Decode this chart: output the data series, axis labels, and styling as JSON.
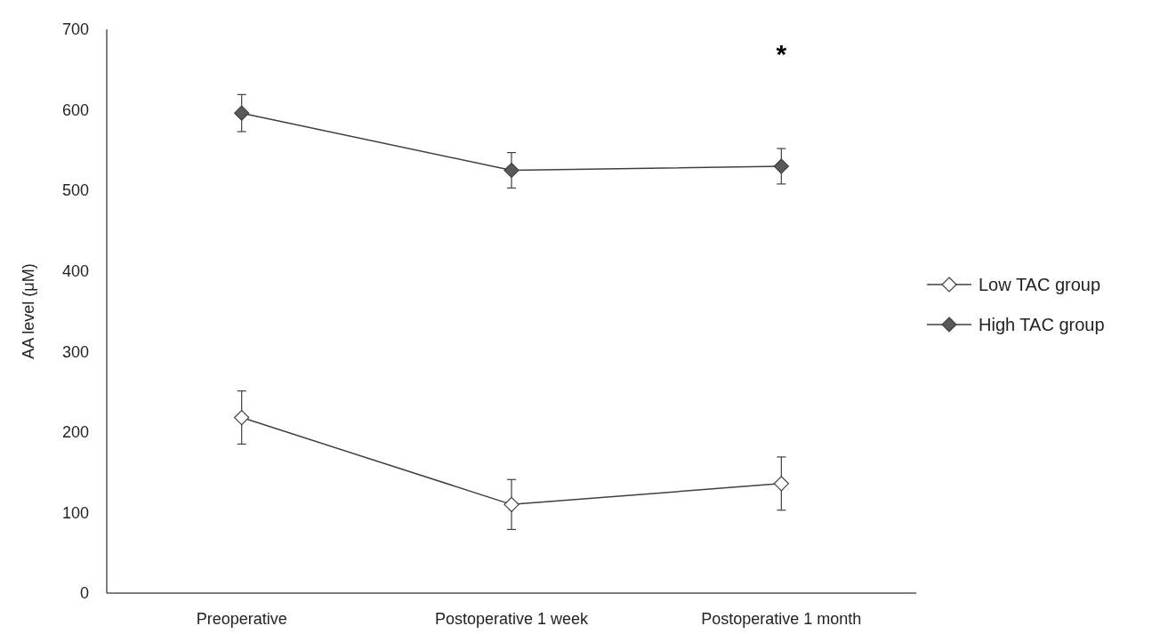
{
  "chart_data": {
    "type": "line",
    "ylabel": "AA level  (μM)",
    "categories": [
      "Preoperative",
      "Postoperative 1 week",
      "Postoperative 1 month"
    ],
    "series": [
      {
        "name": "Low TAC group",
        "color": "#ffffff",
        "values": [
          218,
          110,
          136
        ],
        "errors": [
          33,
          31,
          33
        ]
      },
      {
        "name": "High TAC group",
        "color": "#595959",
        "values": [
          596,
          525,
          530
        ],
        "errors": [
          23,
          22,
          22
        ]
      }
    ],
    "ylim": [
      0,
      700
    ],
    "yticks": [
      0,
      100,
      200,
      300,
      400,
      500,
      600,
      700
    ],
    "grid": false,
    "legend": "right",
    "marker": "diamond",
    "annotations": [
      "*"
    ]
  }
}
